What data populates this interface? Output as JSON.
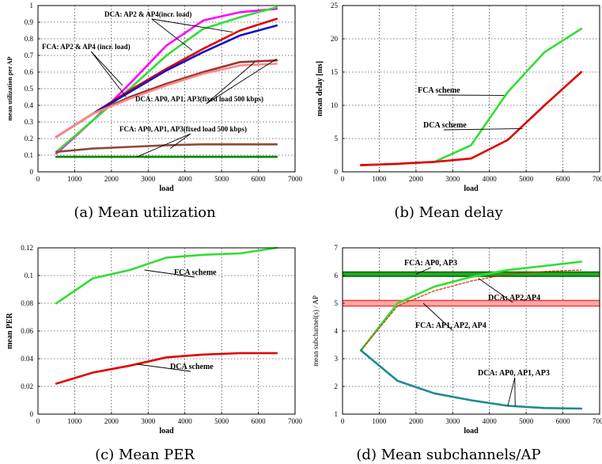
{
  "chart_data": [
    {
      "type": "line",
      "caption": "(a) Mean utilization",
      "xlabel": "load",
      "ylabel": "mean utilization per AP",
      "xlim": [
        0,
        7000
      ],
      "ylim": [
        0,
        1
      ],
      "xticks": [
        0,
        1000,
        2000,
        3000,
        4000,
        5000,
        6000,
        7000
      ],
      "yticks": [
        0,
        0.1,
        0.2,
        0.3,
        0.4,
        0.5,
        0.6,
        0.7,
        0.8,
        0.9,
        1
      ],
      "grid": true,
      "series": [
        {
          "color": "#ff00ff",
          "x": [
            500,
            1500,
            2500,
            3500,
            4500,
            5500,
            6500
          ],
          "y": [
            0.11,
            0.31,
            0.53,
            0.76,
            0.91,
            0.96,
            0.98
          ]
        },
        {
          "color": "#33dd33",
          "x": [
            500,
            1500,
            2500,
            3500,
            4500,
            5500,
            6500
          ],
          "y": [
            0.12,
            0.31,
            0.5,
            0.7,
            0.86,
            0.93,
            0.99
          ]
        },
        {
          "color": "#e00000",
          "x": [
            500,
            1500,
            2500,
            3500,
            4500,
            5500,
            6500
          ],
          "y": [
            0.21,
            0.35,
            0.49,
            0.62,
            0.74,
            0.85,
            0.92
          ]
        },
        {
          "color": "#1111cc",
          "x": [
            500,
            1500,
            2500,
            3500,
            4500,
            5500,
            6500
          ],
          "y": [
            0.21,
            0.35,
            0.48,
            0.61,
            0.72,
            0.82,
            0.88
          ]
        },
        {
          "color": "#993333",
          "x": [
            500,
            1500,
            2500,
            3500,
            4500,
            5500,
            6500
          ],
          "y": [
            0.21,
            0.35,
            0.45,
            0.53,
            0.6,
            0.66,
            0.67
          ]
        },
        {
          "color": "#ff8888",
          "x": [
            500,
            1500,
            2500,
            3500,
            4500,
            5500,
            6500
          ],
          "y": [
            0.21,
            0.35,
            0.44,
            0.52,
            0.59,
            0.64,
            0.65
          ]
        },
        {
          "color": "#8b4a3a",
          "x": [
            500,
            1500,
            2500,
            3500,
            4500,
            5500,
            6500
          ],
          "y": [
            0.12,
            0.14,
            0.15,
            0.16,
            0.165,
            0.165,
            0.165
          ]
        },
        {
          "color": "#008800",
          "x": [
            500,
            1500,
            2500,
            3500,
            4500,
            5500,
            6500
          ],
          "y": [
            0.09,
            0.09,
            0.09,
            0.09,
            0.09,
            0.09,
            0.09
          ]
        }
      ],
      "annotations": [
        {
          "text": "DCA: AP2 & AP4(incr. load)",
          "pointers": [
            [
              4200,
              0.73
            ],
            [
              5300,
              0.84
            ]
          ]
        },
        {
          "text": "FCA: AP2 & AP4 (incr. load)",
          "pointers": [
            [
              2300,
              0.52
            ],
            [
              2400,
              0.45
            ]
          ]
        },
        {
          "text": "DCA: AP0, AP1, AP3(fixed load 500 kbps)",
          "pointers": [
            [
              5900,
              0.66
            ],
            [
              6500,
              0.68
            ]
          ]
        },
        {
          "text": "FCA: AP0, AP1, AP3(fixed load 500 kbps)",
          "pointers": [
            [
              2700,
              0.09
            ],
            [
              3600,
              0.14
            ]
          ]
        }
      ]
    },
    {
      "type": "line",
      "caption": "(b) Mean delay",
      "xlabel": "load",
      "ylabel": "mean delay [ms]",
      "xlim": [
        0,
        7000
      ],
      "ylim": [
        0,
        25
      ],
      "xticks": [
        0,
        1000,
        2000,
        3000,
        4000,
        5000,
        6000,
        7000
      ],
      "yticks": [
        0,
        5,
        10,
        15,
        20,
        25
      ],
      "grid": true,
      "series": [
        {
          "color": "#33dd33",
          "x": [
            500,
            1500,
            2500,
            3500,
            4500,
            5500,
            6500
          ],
          "y": [
            1.0,
            1.2,
            1.5,
            4.0,
            12.0,
            18.0,
            21.5
          ]
        },
        {
          "color": "#e00000",
          "x": [
            500,
            1500,
            2500,
            3500,
            4500,
            5500,
            6500
          ],
          "y": [
            1.0,
            1.2,
            1.5,
            2.0,
            4.8,
            10.0,
            15.0
          ]
        }
      ],
      "annotations": [
        {
          "text": "FCA scheme",
          "pointers": [
            [
              4400,
              11.5
            ]
          ]
        },
        {
          "text": "DCA scheme",
          "pointers": [
            [
              4900,
              6.5
            ]
          ]
        }
      ]
    },
    {
      "type": "line",
      "caption": "(c) Mean PER",
      "xlabel": "load",
      "ylabel": "mean PER",
      "xlim": [
        0,
        7000
      ],
      "ylim": [
        0,
        0.12
      ],
      "xticks": [
        0,
        1000,
        2000,
        3000,
        4000,
        5000,
        6000,
        7000
      ],
      "yticks": [
        0,
        0.02,
        0.04,
        0.06,
        0.08,
        0.1,
        0.12
      ],
      "ytick_labels": [
        "0",
        "0.02",
        "0.04",
        "0.06",
        "0.08",
        "0.1",
        "0.12"
      ],
      "grid": true,
      "series": [
        {
          "color": "#33dd33",
          "x": [
            500,
            1500,
            2500,
            3500,
            4500,
            5500,
            6500
          ],
          "y": [
            0.08,
            0.098,
            0.104,
            0.113,
            0.115,
            0.116,
            0.12
          ]
        },
        {
          "color": "#e00000",
          "x": [
            500,
            1500,
            2500,
            3500,
            4500,
            5500,
            6500
          ],
          "y": [
            0.022,
            0.03,
            0.035,
            0.041,
            0.043,
            0.044,
            0.044
          ]
        }
      ],
      "annotations": [
        {
          "text": "FCA scheme",
          "pointers": [
            [
              2900,
              0.104
            ]
          ]
        },
        {
          "text": "DCA scheme",
          "pointers": [
            [
              2700,
              0.036
            ]
          ]
        }
      ]
    },
    {
      "type": "line",
      "caption": "(d) Mean subchannels/AP",
      "xlabel": "load",
      "ylabel": "mean subchannel(s) / AP",
      "xlim": [
        0,
        7000
      ],
      "ylim": [
        1,
        7
      ],
      "xticks": [
        0,
        1000,
        2000,
        3000,
        4000,
        5000,
        6000,
        7000
      ],
      "yticks": [
        1,
        2,
        3,
        4,
        5,
        6,
        7
      ],
      "grid": true,
      "series": [
        {
          "color": "#33dd33",
          "x": [
            500,
            1500,
            2500,
            3500,
            4500,
            5500,
            6500
          ],
          "y": [
            3.3,
            5.0,
            5.6,
            5.95,
            6.2,
            6.35,
            6.5
          ]
        },
        {
          "color": "#cc3300",
          "dashed": true,
          "x": [
            500,
            1500,
            2500,
            3500,
            4500,
            5500,
            6500
          ],
          "y": [
            3.3,
            4.9,
            5.45,
            5.8,
            6.05,
            6.15,
            6.2
          ]
        },
        {
          "color": "#1f8a8a",
          "x": [
            500,
            1500,
            2500,
            3500,
            4500,
            5500,
            6500
          ],
          "y": [
            3.3,
            2.2,
            1.75,
            1.5,
            1.3,
            1.22,
            1.2
          ]
        }
      ],
      "hbands": [
        {
          "y": 6.05,
          "color": "#006600",
          "fill": "#22aa22",
          "halfwidth": 0.08
        },
        {
          "y": 5.0,
          "color": "#ff3333",
          "fill": "#ffaaaa",
          "halfwidth": 0.1
        }
      ],
      "annotations": [
        {
          "text": "FCA: AP0, AP3",
          "pointers": [
            [
              2000,
              6.05
            ]
          ]
        },
        {
          "text": "DCA: AP2,AP4",
          "pointers": [
            [
              3700,
              5.9
            ]
          ]
        },
        {
          "text": "FCA: AP1, AP2, AP4",
          "pointers": [
            [
              2200,
              5.0
            ]
          ]
        },
        {
          "text": "DCA: AP0, AP1, AP3",
          "pointers": [
            [
              4500,
              1.3
            ],
            [
              4700,
              1.28
            ]
          ]
        }
      ]
    }
  ]
}
